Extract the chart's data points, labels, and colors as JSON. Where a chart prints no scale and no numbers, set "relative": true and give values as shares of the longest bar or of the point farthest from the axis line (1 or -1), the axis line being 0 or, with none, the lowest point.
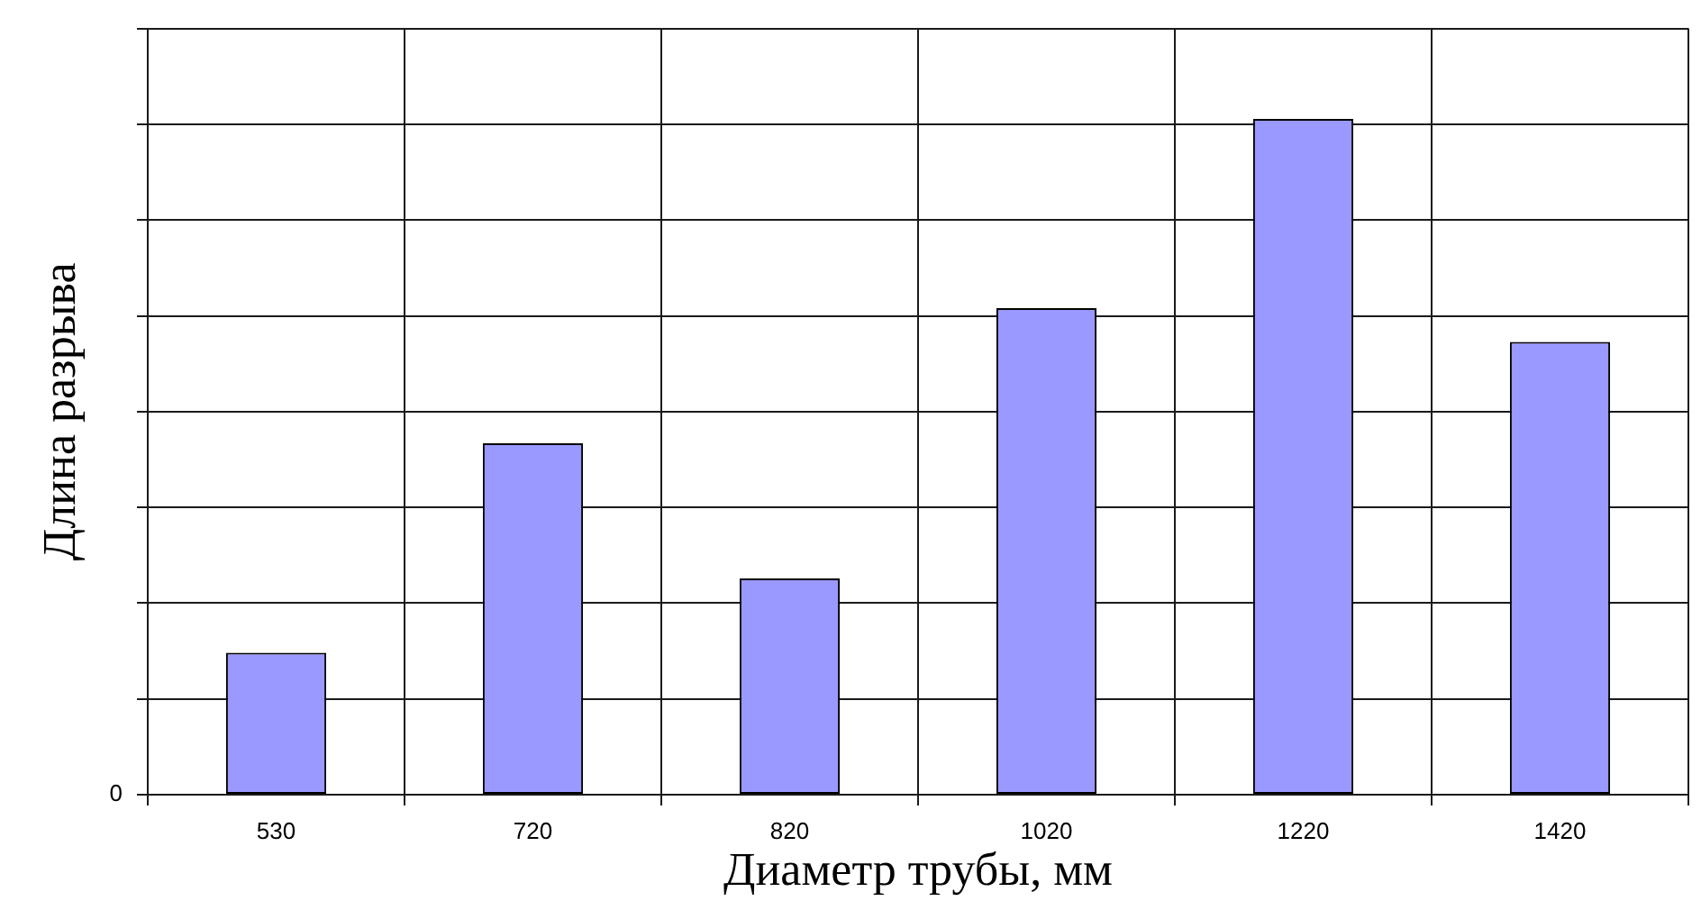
{
  "chart_data": {
    "type": "bar",
    "xlabel": "Диаметр трубы, мм",
    "ylabel": "Длина разрыва",
    "categories": [
      "530",
      "720",
      "820",
      "1020",
      "1220",
      "1420"
    ],
    "values": [
      0.21,
      0.52,
      0.32,
      0.72,
      1,
      0.67
    ],
    "color": "#9999ff",
    "relative": true,
    "annotations": [
      "0"
    ],
    "grid": true
  }
}
